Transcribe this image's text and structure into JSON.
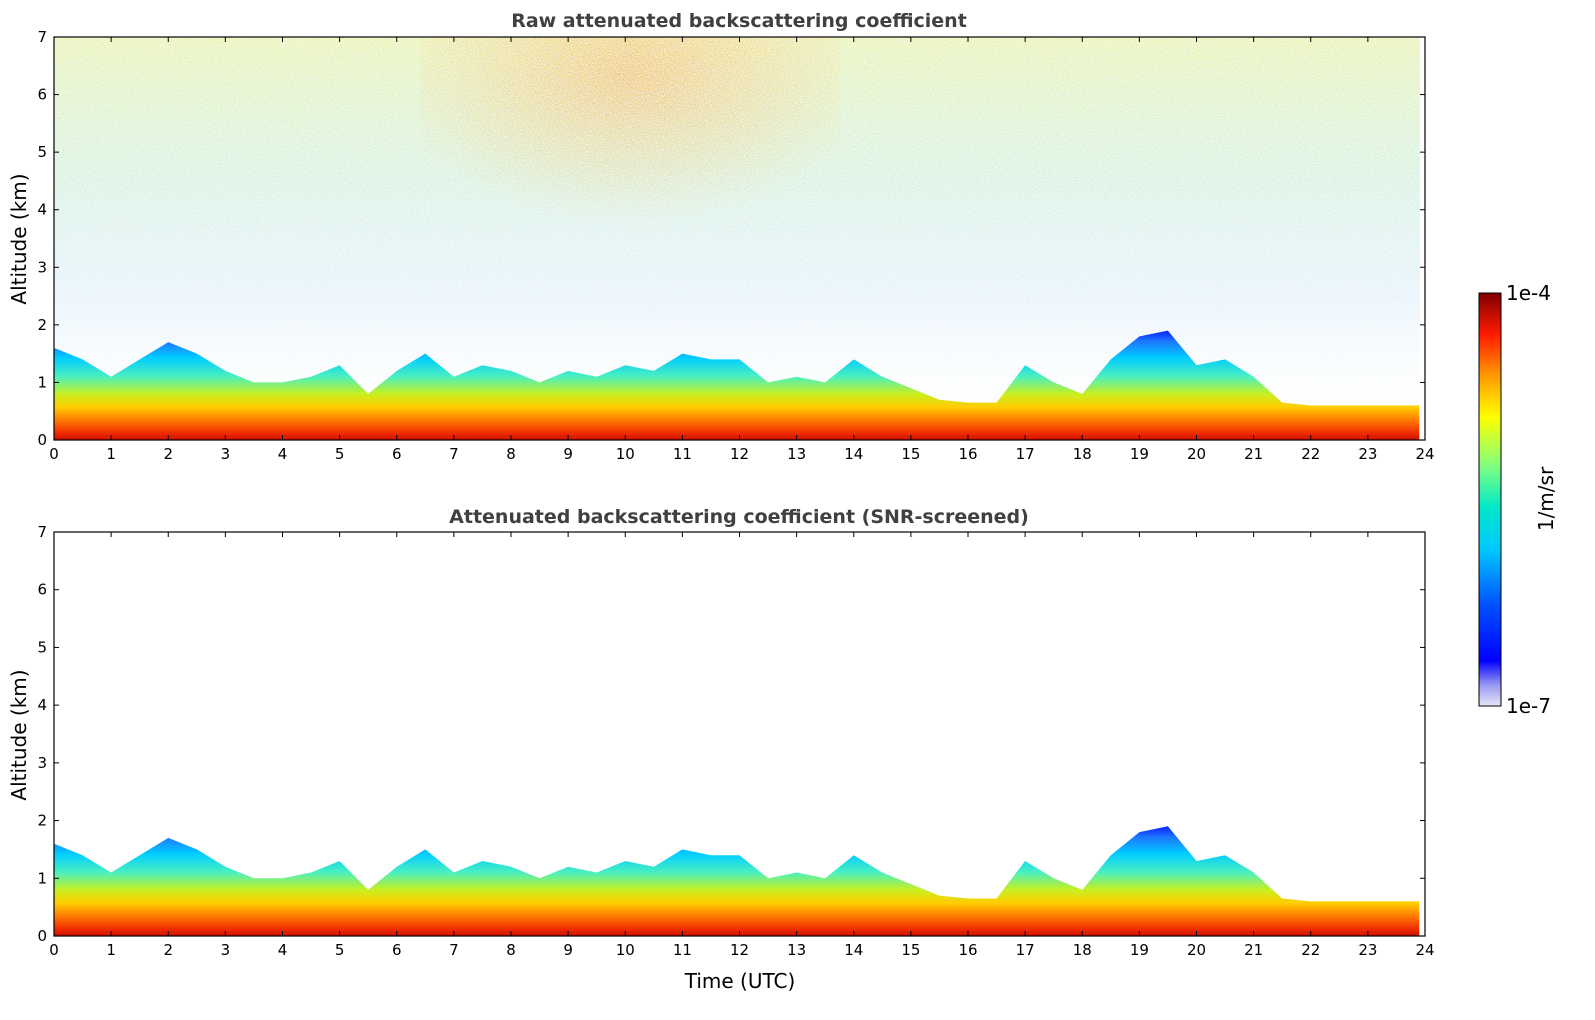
{
  "chart_data": [
    {
      "type": "heatmap",
      "title": "Raw attenuated backscattering coefficient",
      "xlabel": "",
      "ylabel": "Altitude (km)",
      "xlim": [
        0,
        24
      ],
      "ylim": [
        0,
        7
      ],
      "xticks": [
        "0",
        "1",
        "2",
        "3",
        "4",
        "5",
        "6",
        "7",
        "8",
        "9",
        "10",
        "11",
        "12",
        "13",
        "14",
        "15",
        "16",
        "17",
        "18",
        "19",
        "20",
        "21",
        "22",
        "23",
        "24"
      ],
      "yticks": [
        "0",
        "1",
        "2",
        "3",
        "4",
        "5",
        "6",
        "7"
      ],
      "boundary_layer_top_km": {
        "x": [
          0,
          0.5,
          1,
          1.5,
          2,
          2.5,
          3,
          3.5,
          4,
          4.5,
          5,
          5.5,
          6,
          6.5,
          7,
          7.5,
          8,
          8.5,
          9,
          9.5,
          10,
          10.5,
          11,
          11.5,
          12,
          12.5,
          13,
          13.5,
          14,
          14.5,
          15,
          15.5,
          16,
          16.5,
          17,
          17.5,
          18,
          18.5,
          19,
          19.5,
          20,
          20.5,
          21,
          21.5,
          22,
          22.5,
          23,
          23.5,
          23.9
        ],
        "y": [
          1.6,
          1.4,
          1.1,
          1.4,
          1.7,
          1.5,
          1.2,
          1.0,
          1.0,
          1.1,
          1.3,
          0.8,
          1.2,
          1.5,
          1.1,
          1.3,
          1.2,
          1.0,
          1.2,
          1.1,
          1.3,
          1.2,
          1.5,
          1.4,
          1.4,
          1.0,
          1.1,
          1.0,
          1.4,
          1.1,
          0.9,
          0.7,
          0.65,
          0.65,
          1.3,
          1.0,
          0.8,
          1.4,
          1.8,
          1.9,
          1.3,
          1.4,
          1.1,
          0.65,
          0.6,
          0.6,
          0.6,
          0.6,
          0.6
        ]
      },
      "noise_background": "high altitude noise increasing upward, strongest near 9-12 UTC above 5 km"
    },
    {
      "type": "heatmap",
      "title": "Attenuated backscattering coefficient (SNR-screened)",
      "xlabel": "Time (UTC)",
      "ylabel": "Altitude (km)",
      "xlim": [
        0,
        24
      ],
      "ylim": [
        0,
        7
      ],
      "xticks": [
        "0",
        "1",
        "2",
        "3",
        "4",
        "5",
        "6",
        "7",
        "8",
        "9",
        "10",
        "11",
        "12",
        "13",
        "14",
        "15",
        "16",
        "17",
        "18",
        "19",
        "20",
        "21",
        "22",
        "23",
        "24"
      ],
      "yticks": [
        "0",
        "1",
        "2",
        "3",
        "4",
        "5",
        "6",
        "7"
      ],
      "boundary_layer_top_km": {
        "x": [
          0,
          0.5,
          1,
          1.5,
          2,
          2.5,
          3,
          3.5,
          4,
          4.5,
          5,
          5.5,
          6,
          6.5,
          7,
          7.5,
          8,
          8.5,
          9,
          9.5,
          10,
          10.5,
          11,
          11.5,
          12,
          12.5,
          13,
          13.5,
          14,
          14.5,
          15,
          15.5,
          16,
          16.5,
          17,
          17.5,
          18,
          18.5,
          19,
          19.5,
          20,
          20.5,
          21,
          21.5,
          22,
          22.5,
          23,
          23.5,
          23.9
        ],
        "y": [
          1.6,
          1.4,
          1.1,
          1.4,
          1.7,
          1.5,
          1.2,
          1.0,
          1.0,
          1.1,
          1.3,
          0.8,
          1.2,
          1.5,
          1.1,
          1.3,
          1.2,
          1.0,
          1.2,
          1.1,
          1.3,
          1.2,
          1.5,
          1.4,
          1.4,
          1.0,
          1.1,
          1.0,
          1.4,
          1.1,
          0.9,
          0.7,
          0.65,
          0.65,
          1.3,
          1.0,
          0.8,
          1.4,
          1.8,
          1.9,
          1.3,
          1.4,
          1.1,
          0.65,
          0.6,
          0.6,
          0.6,
          0.6,
          0.6
        ]
      }
    }
  ],
  "colorbar": {
    "label": "1/m/sr",
    "max_label": "1e-4",
    "min_label": "1e-7",
    "scale": "log",
    "colormap": "jet",
    "range": [
      1e-07,
      0.0001
    ]
  },
  "colors": {
    "title": "#404040",
    "jet": [
      "#00007f",
      "#0000ff",
      "#007fff",
      "#00ffff",
      "#7fff7f",
      "#ffff00",
      "#ff7f00",
      "#ff0000",
      "#7f0000"
    ]
  }
}
